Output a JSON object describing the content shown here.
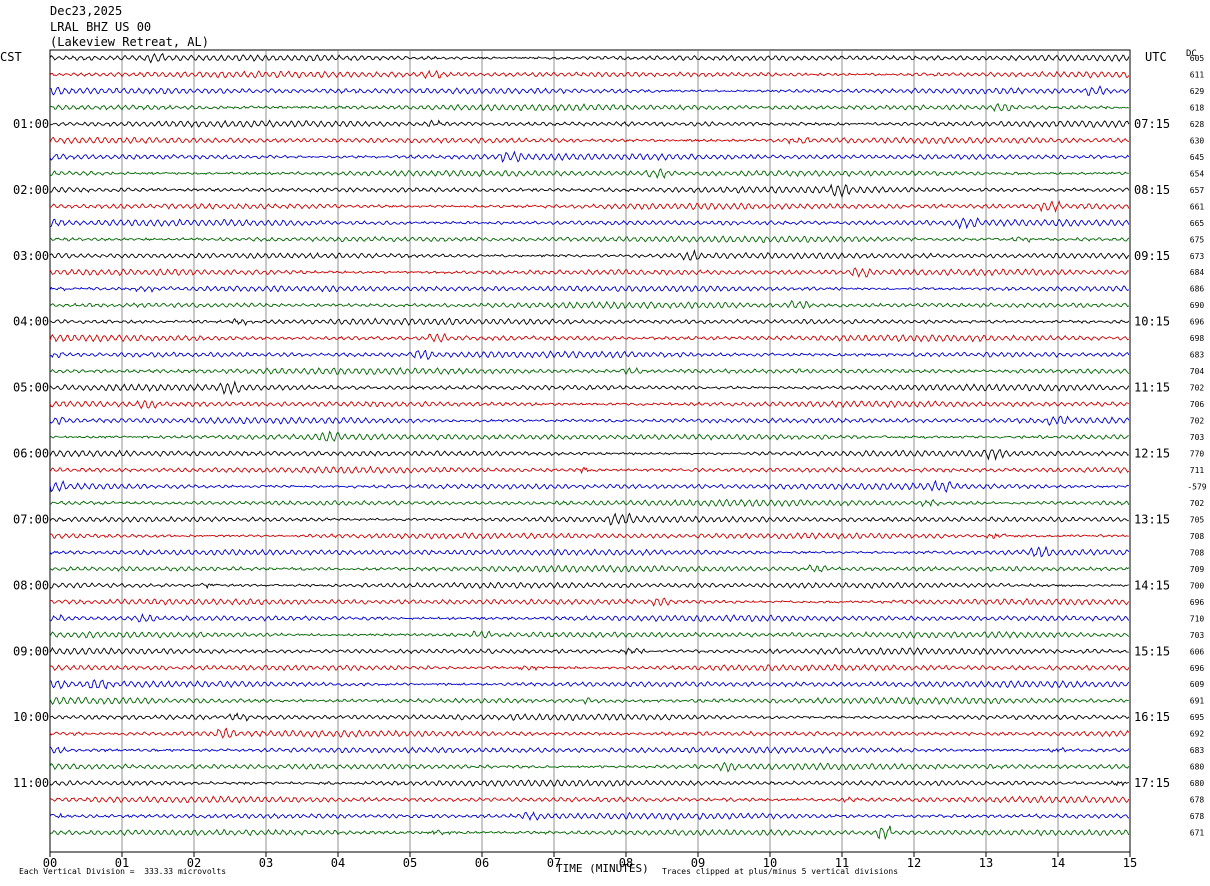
{
  "header": {
    "date": "Dec23,2025",
    "station": "LRAL BHZ US 00",
    "location": "(Lakeview Retreat, AL)"
  },
  "labels": {
    "left_tz": "CST",
    "right_tz": "UTC",
    "dc": "DC",
    "xlabel": "TIME (MINUTES)",
    "scale_note": "Each Vertical Division =  333.33 microvolts",
    "clip_note": "Traces clipped at plus/minus 5 vertical divisions"
  },
  "colors": {
    "trace_cycle": [
      "#000000",
      "#cc0000",
      "#0000cc",
      "#006600"
    ],
    "grid": "#777777"
  },
  "chart_data": {
    "type": "line",
    "title": "Dec23,2025 LRAL BHZ US 00 (Lakeview Retreat, AL)",
    "xlabel": "TIME (MINUTES)",
    "x_ticks": [
      "00",
      "01",
      "02",
      "03",
      "04",
      "05",
      "06",
      "07",
      "08",
      "09",
      "10",
      "11",
      "12",
      "13",
      "14",
      "15"
    ],
    "xlim": [
      0,
      15
    ],
    "left_hour_labels": [
      "01:00",
      "02:00",
      "03:00",
      "04:00",
      "05:00",
      "06:00",
      "07:00",
      "08:00",
      "09:00",
      "10:00",
      "11:00"
    ],
    "right_hour_labels": [
      "07:15",
      "08:15",
      "09:15",
      "10:15",
      "11:15",
      "12:15",
      "13:15",
      "14:15",
      "15:15",
      "16:15",
      "17:15"
    ],
    "trace_count": 48,
    "traces_per_hour": 4,
    "dc_offsets": [
      "605",
      "611",
      "629",
      "618",
      "628",
      "630",
      "645",
      "654",
      "657",
      "661",
      "665",
      "675",
      "673",
      "684",
      "686",
      "690",
      "696",
      "698",
      "683",
      "704",
      "702",
      "706",
      "702",
      "703",
      "770",
      "711",
      "-579",
      "702",
      "705",
      "708",
      "708",
      "709",
      "700",
      "696",
      "710",
      "703",
      "606",
      "696",
      "609",
      "691",
      "695",
      "692",
      "683",
      "680",
      "680",
      "678",
      "678",
      "671"
    ]
  }
}
